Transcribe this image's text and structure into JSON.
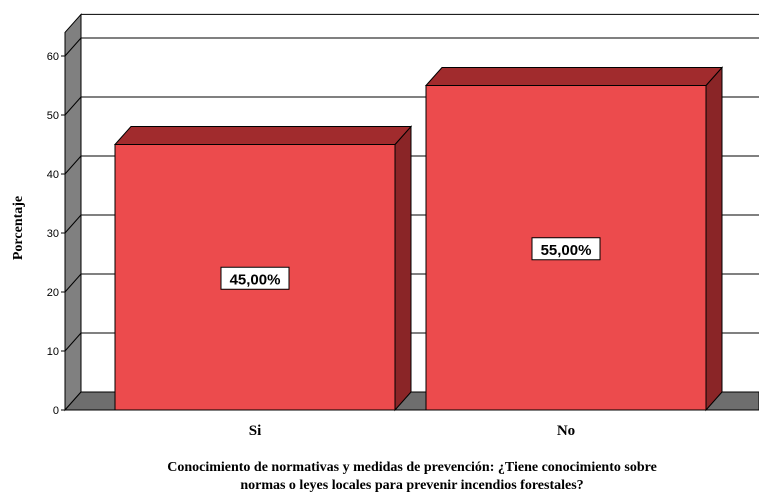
{
  "chart_data": {
    "type": "bar",
    "categories": [
      "Si",
      "No"
    ],
    "values": [
      45,
      55
    ],
    "data_labels": [
      "45,00%",
      "55,00%"
    ],
    "ylabel": "Porcentaje",
    "xlabel_lines": [
      "Conocimiento de normativas y medidas de prevención: ¿Tiene conocimiento sobre",
      "normas o leyes locales para prevenir incendios forestales?"
    ],
    "yticks": [
      "0",
      "10",
      "20",
      "30",
      "40",
      "50",
      "60"
    ],
    "ylim": [
      0,
      64
    ],
    "grid": true,
    "style": "3d",
    "colors": {
      "bar_front": "#ec4b4d",
      "bar_top": "#a12b2d",
      "bar_side": "#8a2527",
      "wall": "#808080",
      "floor": "#6e6e6e",
      "grid": "#000000"
    }
  }
}
